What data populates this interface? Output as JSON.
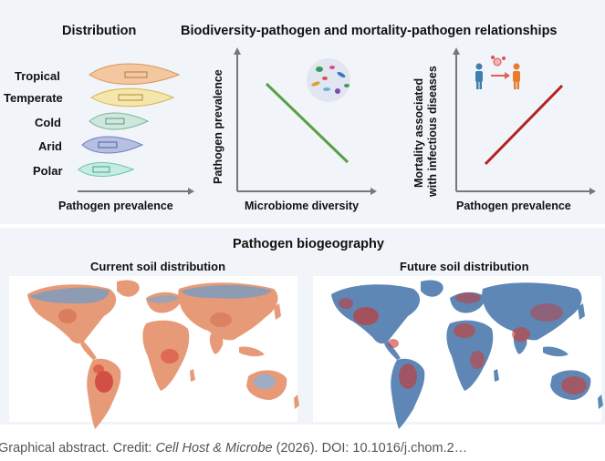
{
  "distribution": {
    "title": "Distribution",
    "categories": [
      "Tropical",
      "Temperate",
      "Cold",
      "Arid",
      "Polar"
    ],
    "colors": [
      "#e9a567",
      "#ead27b",
      "#9ccbb8",
      "#7e8fc9",
      "#8dd4c3"
    ],
    "xlabel": "Pathogen prevalence"
  },
  "relationships": {
    "title": "Biodiversity-pathogen and mortality-pathogen relationships",
    "left_plot": {
      "ylabel": "Pathogen prevalence",
      "xlabel": "Microbiome diversity",
      "trend": "negative",
      "line_color": "#5a9e45"
    },
    "right_plot": {
      "ylabel_line1": "Mortality associated",
      "ylabel_line2": "with infectious diseases",
      "xlabel": "Pathogen prevalence",
      "trend": "positive",
      "line_color": "#b22222"
    }
  },
  "biogeography": {
    "title": "Pathogen biogeography",
    "current_title": "Current soil distribution",
    "future_title": "Future soil distribution"
  },
  "caption": {
    "prefix": "Graphical abstract. Credit: ",
    "journal": "Cell Host & Microbe",
    "suffix": " (2026). DOI: 10.1016/j.chom.2…"
  }
}
